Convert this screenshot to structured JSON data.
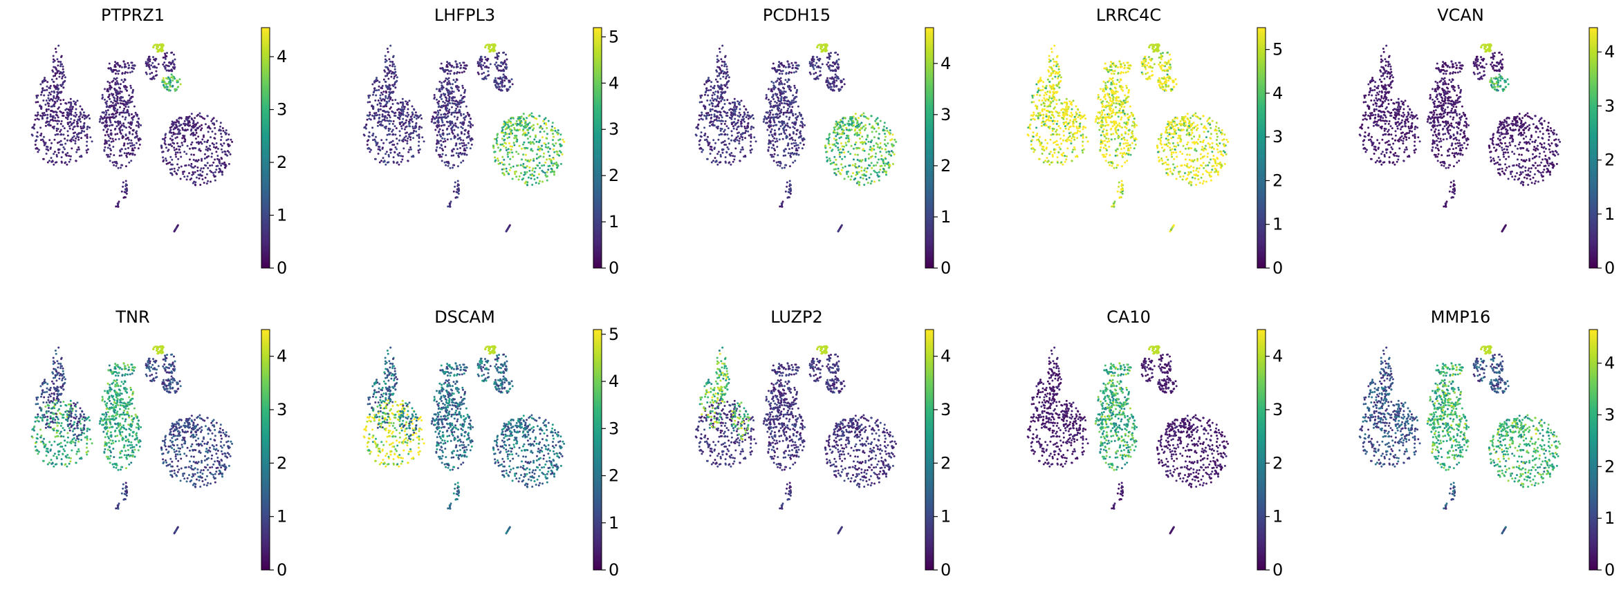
{
  "chart_data": {
    "type": "scatter",
    "layout": "2x5 grid of UMAP embeddings colored by gene expression",
    "colormap": "viridis",
    "colorbar_colors": [
      "#440154",
      "#482878",
      "#3e4989",
      "#31688e",
      "#26828e",
      "#1f9e89",
      "#35b779",
      "#6ece58",
      "#b5de2b",
      "#fde725"
    ],
    "axes": "hidden",
    "grid": false,
    "panels": [
      {
        "title": "PTPRZ1",
        "clim": [
          0,
          4.55
        ],
        "ticks": [
          "0",
          "1",
          "2",
          "3",
          "4"
        ],
        "hot_region": "top-right-cluster",
        "base_level": 0.15
      },
      {
        "title": "LHFPL3",
        "clim": [
          0,
          5.2
        ],
        "ticks": [
          "0",
          "1",
          "2",
          "3",
          "4",
          "5"
        ],
        "hot_region": "right-cluster",
        "base_level": 0.2
      },
      {
        "title": "PCDH15",
        "clim": [
          0,
          4.7
        ],
        "ticks": [
          "0",
          "1",
          "2",
          "3",
          "4"
        ],
        "hot_region": "right-cluster",
        "base_level": 0.2
      },
      {
        "title": "LRRC4C",
        "clim": [
          0,
          5.5
        ],
        "ticks": [
          "0",
          "1",
          "2",
          "3",
          "4",
          "5"
        ],
        "hot_region": "everywhere",
        "base_level": 0.6
      },
      {
        "title": "VCAN",
        "clim": [
          0,
          4.45
        ],
        "ticks": [
          "0",
          "1",
          "2",
          "3",
          "4"
        ],
        "hot_region": "top-right-cluster",
        "base_level": 0.1
      },
      {
        "title": "TNR",
        "clim": [
          0,
          4.5
        ],
        "ticks": [
          "0",
          "1",
          "2",
          "3",
          "4"
        ],
        "hot_region": "mid-and-left",
        "base_level": 0.3
      },
      {
        "title": "DSCAM",
        "clim": [
          0,
          5.1
        ],
        "ticks": [
          "0",
          "1",
          "2",
          "3",
          "4",
          "5"
        ],
        "hot_region": "left-cluster",
        "base_level": 0.5
      },
      {
        "title": "LUZP2",
        "clim": [
          0,
          4.5
        ],
        "ticks": [
          "0",
          "1",
          "2",
          "3",
          "4"
        ],
        "hot_region": "left-branch",
        "base_level": 0.2
      },
      {
        "title": "CA10",
        "clim": [
          0,
          4.5
        ],
        "ticks": [
          "0",
          "1",
          "2",
          "3",
          "4"
        ],
        "hot_region": "mid-cluster",
        "base_level": 0.1
      },
      {
        "title": "MMP16",
        "clim": [
          0,
          4.65
        ],
        "ticks": [
          "0",
          "1",
          "2",
          "3",
          "4"
        ],
        "hot_region": "mid-and-right",
        "base_level": 0.35
      }
    ]
  }
}
